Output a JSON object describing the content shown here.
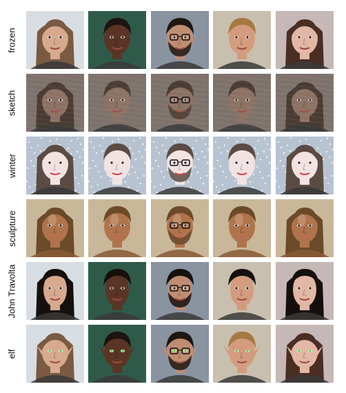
{
  "rows": [
    {
      "label": "frozen",
      "effect": "photo"
    },
    {
      "label": "sketch",
      "effect": "sketch"
    },
    {
      "label": "winter",
      "effect": "winter"
    },
    {
      "label": "sculpture",
      "effect": "sculpture"
    },
    {
      "label": "John Travolta",
      "effect": "travolta"
    },
    {
      "label": "elf",
      "effect": "elf"
    }
  ],
  "subjects": [
    {
      "bg": "#d8dde2",
      "skin": "#d7a98e",
      "hair": "#7a5a42",
      "long_hair": true,
      "glasses": false,
      "beard": false
    },
    {
      "bg": "#2f5a4a",
      "skin": "#5a3526",
      "hair": "#1c1410",
      "long_hair": false,
      "glasses": false,
      "beard": false
    },
    {
      "bg": "#8a93a0",
      "skin": "#c08d72",
      "hair": "#1e1712",
      "long_hair": false,
      "glasses": true,
      "beard": true
    },
    {
      "bg": "#c9bfae",
      "skin": "#d49c7e",
      "hair": "#a57a42",
      "long_hair": false,
      "glasses": false,
      "beard": false
    },
    {
      "bg": "#c7b8b8",
      "skin": "#e2b7a6",
      "hair": "#4a2e24",
      "long_hair": true,
      "glasses": false,
      "beard": false
    }
  ],
  "palettes": {
    "sketch": {
      "skin": "#8c7264",
      "hair": "#4a3c34",
      "bg": "#7e736c"
    },
    "winter": {
      "skin": "#f1e3e2",
      "hair": "#5b4b44",
      "bg": "#b7c3d1"
    },
    "sculpture": {
      "skin": "#b0744c",
      "hair": "#6b4a2a",
      "bg": "#c9b79a"
    },
    "elf": {
      "eye": "#3ad23a"
    }
  }
}
